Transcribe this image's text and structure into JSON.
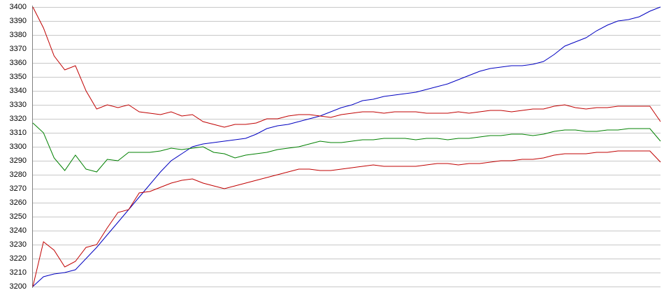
{
  "chart_data": {
    "type": "line",
    "ylim": [
      3200,
      3400
    ],
    "yticks": [
      3200,
      3210,
      3220,
      3230,
      3240,
      3250,
      3260,
      3270,
      3280,
      3290,
      3300,
      3310,
      3320,
      3330,
      3340,
      3350,
      3360,
      3370,
      3380,
      3390,
      3400
    ],
    "grid": true,
    "series": [
      {
        "color": "#0000c0",
        "values": [
          3200,
          3207,
          3209,
          3210,
          3212,
          3220,
          3228,
          3237,
          3246,
          3255,
          3264,
          3273,
          3282,
          3290,
          3295,
          3300,
          3302,
          3303,
          3304,
          3305,
          3306,
          3309,
          3313,
          3315,
          3316,
          3318,
          3320,
          3322,
          3325,
          3328,
          3330,
          3333,
          3334,
          3336,
          3337,
          3338,
          3339,
          3341,
          3343,
          3345,
          3348,
          3351,
          3354,
          3356,
          3357,
          3358,
          3358,
          3359,
          3361,
          3366,
          3372,
          3375,
          3378,
          3383,
          3387,
          3390,
          3391,
          3393,
          3397,
          3400
        ]
      },
      {
        "color": "#c00000",
        "values": [
          3400,
          3385,
          3365,
          3355,
          3358,
          3340,
          3327,
          3330,
          3328,
          3330,
          3325,
          3324,
          3323,
          3325,
          3322,
          3323,
          3318,
          3316,
          3314,
          3316,
          3316,
          3317,
          3320,
          3320,
          3322,
          3323,
          3323,
          3322,
          3321,
          3323,
          3324,
          3325,
          3325,
          3324,
          3325,
          3325,
          3325,
          3324,
          3324,
          3324,
          3325,
          3324,
          3325,
          3326,
          3326,
          3325,
          3326,
          3327,
          3327,
          3329,
          3330,
          3328,
          3327,
          3328,
          3328,
          3329,
          3329,
          3329,
          3329,
          3318
        ]
      },
      {
        "color": "#008000",
        "values": [
          3317,
          3310,
          3292,
          3283,
          3294,
          3284,
          3282,
          3291,
          3290,
          3296,
          3296,
          3296,
          3297,
          3299,
          3298,
          3299,
          3300,
          3296,
          3295,
          3292,
          3294,
          3295,
          3296,
          3298,
          3299,
          3300,
          3302,
          3304,
          3303,
          3303,
          3304,
          3305,
          3305,
          3306,
          3306,
          3306,
          3305,
          3306,
          3306,
          3305,
          3306,
          3306,
          3307,
          3308,
          3308,
          3309,
          3309,
          3308,
          3309,
          3311,
          3312,
          3312,
          3311,
          3311,
          3312,
          3312,
          3313,
          3313,
          3313,
          3304
        ]
      },
      {
        "color": "#c00000",
        "values": [
          3200,
          3232,
          3226,
          3214,
          3218,
          3228,
          3230,
          3242,
          3253,
          3255,
          3267,
          3268,
          3271,
          3274,
          3276,
          3277,
          3274,
          3272,
          3270,
          3272,
          3274,
          3276,
          3278,
          3280,
          3282,
          3284,
          3284,
          3283,
          3283,
          3284,
          3285,
          3286,
          3287,
          3286,
          3286,
          3286,
          3286,
          3287,
          3288,
          3288,
          3287,
          3288,
          3288,
          3289,
          3290,
          3290,
          3291,
          3291,
          3292,
          3294,
          3295,
          3295,
          3295,
          3296,
          3296,
          3297,
          3297,
          3297,
          3297,
          3289
        ]
      }
    ]
  }
}
